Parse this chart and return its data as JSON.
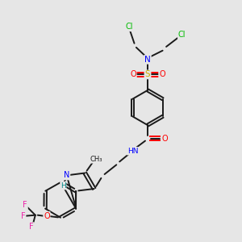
{
  "bg_color": "#e6e6e6",
  "bond_color": "#1a1a1a",
  "atom_colors": {
    "N": "#0000ff",
    "O": "#ff0000",
    "S": "#ccaa00",
    "Cl": "#00bb00",
    "F": "#ee22aa",
    "H": "#008888",
    "C": "#1a1a1a"
  }
}
